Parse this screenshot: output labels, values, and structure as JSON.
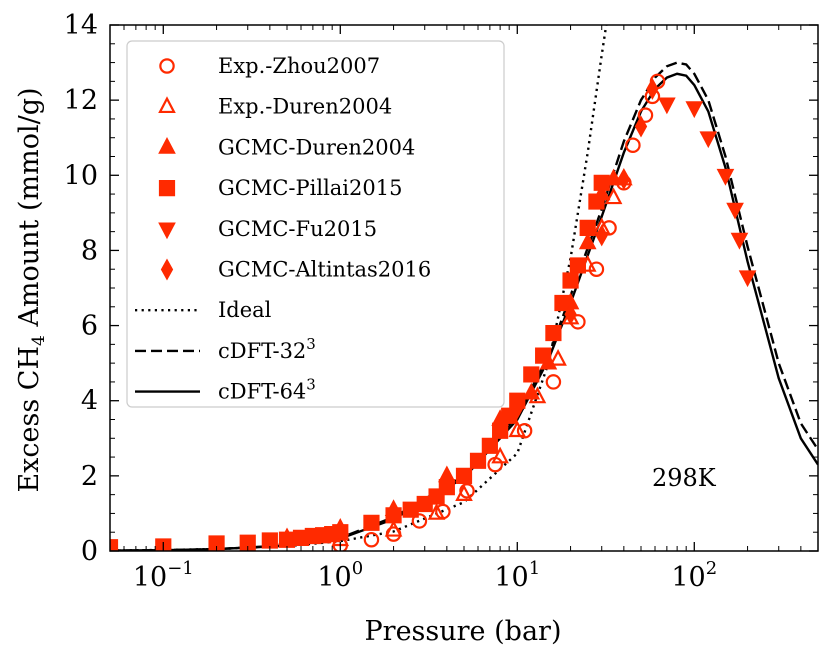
{
  "chart_data": {
    "type": "scatter",
    "xlabel": "Pressure (bar)",
    "ylabel_parts": [
      "Excess CH",
      "4",
      " Amount (mmol/g)"
    ],
    "xscale": "log",
    "xlim": [
      0.05,
      500
    ],
    "ylim": [
      0,
      14
    ],
    "yticks": [
      0,
      2,
      4,
      6,
      8,
      10,
      12,
      14
    ],
    "xticks": [
      {
        "value": 0.1,
        "base": "10",
        "exp": "−1"
      },
      {
        "value": 1,
        "base": "10",
        "exp": "0"
      },
      {
        "value": 10,
        "base": "10",
        "exp": "1"
      },
      {
        "value": 100,
        "base": "10",
        "exp": "2"
      }
    ],
    "annotation": "298K",
    "legend_position": "top-left",
    "colors": {
      "data": "#ff2a00",
      "model": "#000000"
    },
    "series": [
      {
        "name": "Exp.-Zhou2007",
        "marker": "circle-open",
        "points": [
          [
            1.0,
            0.15
          ],
          [
            1.5,
            0.3
          ],
          [
            2.0,
            0.45
          ],
          [
            2.8,
            0.8
          ],
          [
            3.8,
            1.05
          ],
          [
            5.2,
            1.6
          ],
          [
            7.5,
            2.3
          ],
          [
            11,
            3.2
          ],
          [
            16,
            4.5
          ],
          [
            22,
            6.1
          ],
          [
            28,
            7.5
          ],
          [
            33,
            8.6
          ],
          [
            40,
            9.8
          ],
          [
            45,
            10.8
          ],
          [
            53,
            11.6
          ],
          [
            58,
            12.1
          ],
          [
            62,
            12.5
          ]
        ]
      },
      {
        "name": "Exp.-Duren2004",
        "marker": "triangle-up-open",
        "points": [
          [
            1.0,
            0.3
          ],
          [
            2.0,
            0.55
          ],
          [
            3.5,
            1.0
          ],
          [
            5.0,
            1.5
          ],
          [
            8.0,
            2.5
          ],
          [
            10,
            3.2
          ],
          [
            13,
            4.1
          ],
          [
            17,
            5.1
          ],
          [
            20,
            6.2
          ],
          [
            25,
            7.6
          ],
          [
            30,
            8.6
          ],
          [
            35,
            9.4
          ],
          [
            40,
            9.9
          ]
        ]
      },
      {
        "name": "GCMC-Duren2004",
        "marker": "triangle-up",
        "points": [
          [
            0.5,
            0.35
          ],
          [
            1.0,
            0.6
          ],
          [
            2.0,
            1.1
          ],
          [
            4.0,
            2.0
          ],
          [
            8.0,
            3.5
          ],
          [
            12,
            4.2
          ],
          [
            15,
            5.0
          ],
          [
            20,
            6.6
          ],
          [
            25,
            8.2
          ],
          [
            30,
            9.5
          ],
          [
            35,
            9.9
          ]
        ]
      },
      {
        "name": "GCMC-Pillai2015",
        "marker": "square",
        "points": [
          [
            0.05,
            0.1
          ],
          [
            0.1,
            0.12
          ],
          [
            0.2,
            0.2
          ],
          [
            0.3,
            0.22
          ],
          [
            0.4,
            0.28
          ],
          [
            0.5,
            0.3
          ],
          [
            0.6,
            0.35
          ],
          [
            0.7,
            0.4
          ],
          [
            0.8,
            0.42
          ],
          [
            0.9,
            0.45
          ],
          [
            1.0,
            0.5
          ],
          [
            1.5,
            0.75
          ],
          [
            2.0,
            0.95
          ],
          [
            2.5,
            1.1
          ],
          [
            3.0,
            1.25
          ],
          [
            3.5,
            1.45
          ],
          [
            4.0,
            1.7
          ],
          [
            5.0,
            2.0
          ],
          [
            6.0,
            2.4
          ],
          [
            7.0,
            2.8
          ],
          [
            8.0,
            3.2
          ],
          [
            9.0,
            3.6
          ],
          [
            10,
            4.0
          ],
          [
            12,
            4.7
          ],
          [
            14,
            5.2
          ],
          [
            16,
            5.8
          ],
          [
            18,
            6.6
          ],
          [
            20,
            7.2
          ],
          [
            22,
            7.6
          ],
          [
            25,
            8.6
          ],
          [
            28,
            9.3
          ],
          [
            30,
            9.8
          ]
        ]
      },
      {
        "name": "GCMC-Fu2015",
        "marker": "triangle-down",
        "points": [
          [
            70,
            11.9
          ],
          [
            100,
            11.8
          ],
          [
            120,
            11.0
          ],
          [
            150,
            10.0
          ],
          [
            170,
            9.1
          ],
          [
            180,
            8.3
          ],
          [
            200,
            7.3
          ]
        ]
      },
      {
        "name": "GCMC-Altintas2016",
        "marker": "diamond",
        "points": [
          [
            1.0,
            0.55
          ],
          [
            10,
            3.8
          ],
          [
            20,
            6.3
          ],
          [
            30,
            8.4
          ],
          [
            40,
            9.9
          ],
          [
            50,
            11.3
          ],
          [
            58,
            12.3
          ]
        ]
      },
      {
        "name": "Ideal",
        "line_style": "dotted",
        "curve_points": [
          [
            0.05,
            0.013
          ],
          [
            0.1,
            0.026
          ],
          [
            0.2,
            0.052
          ],
          [
            0.5,
            0.13
          ],
          [
            1,
            0.26
          ],
          [
            2,
            0.52
          ],
          [
            5,
            1.3
          ],
          [
            10,
            2.6
          ],
          [
            15,
            5.0
          ],
          [
            20,
            7.8
          ],
          [
            25,
            10.6
          ],
          [
            30,
            13.2
          ],
          [
            33,
            14.5
          ]
        ]
      },
      {
        "name": "cDFT-32",
        "label_sup": "3",
        "line_style": "dashed",
        "curve_points": [
          [
            0.05,
            0.01
          ],
          [
            0.1,
            0.02
          ],
          [
            0.2,
            0.05
          ],
          [
            0.5,
            0.15
          ],
          [
            1,
            0.35
          ],
          [
            2,
            0.9
          ],
          [
            5,
            2.0
          ],
          [
            10,
            3.6
          ],
          [
            15,
            5.2
          ],
          [
            20,
            6.8
          ],
          [
            30,
            9.1
          ],
          [
            40,
            10.9
          ],
          [
            50,
            12.0
          ],
          [
            60,
            12.6
          ],
          [
            70,
            12.9
          ],
          [
            80,
            13.0
          ],
          [
            90,
            12.95
          ],
          [
            100,
            12.7
          ],
          [
            120,
            12.0
          ],
          [
            150,
            10.5
          ],
          [
            200,
            8.1
          ],
          [
            300,
            5.0
          ],
          [
            400,
            3.4
          ],
          [
            500,
            2.7
          ]
        ]
      },
      {
        "name": "cDFT-64",
        "label_sup": "3",
        "line_style": "solid",
        "curve_points": [
          [
            0.05,
            0.01
          ],
          [
            0.1,
            0.02
          ],
          [
            0.2,
            0.05
          ],
          [
            0.5,
            0.14
          ],
          [
            1,
            0.33
          ],
          [
            2,
            0.85
          ],
          [
            5,
            1.95
          ],
          [
            10,
            3.5
          ],
          [
            15,
            5.1
          ],
          [
            20,
            6.6
          ],
          [
            30,
            8.9
          ],
          [
            40,
            10.6
          ],
          [
            50,
            11.7
          ],
          [
            60,
            12.3
          ],
          [
            70,
            12.6
          ],
          [
            80,
            12.7
          ],
          [
            90,
            12.65
          ],
          [
            100,
            12.4
          ],
          [
            120,
            11.7
          ],
          [
            150,
            10.2
          ],
          [
            200,
            7.7
          ],
          [
            300,
            4.6
          ],
          [
            400,
            3.0
          ],
          [
            500,
            2.3
          ]
        ]
      }
    ]
  }
}
